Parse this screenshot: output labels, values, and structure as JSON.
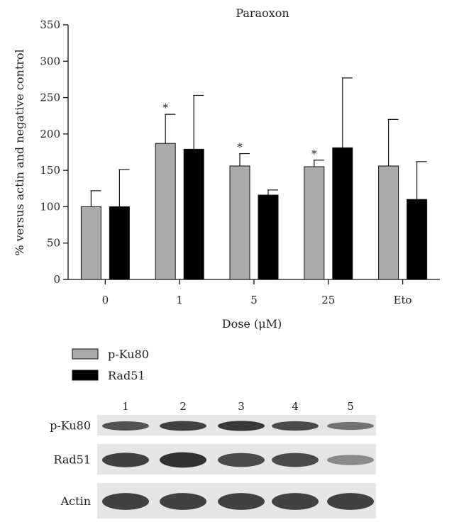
{
  "colors": {
    "pku80": "#aaaaaa",
    "rad51": "#000000",
    "axis": "#111111"
  },
  "chart_data": {
    "type": "bar",
    "title": "Paraoxon",
    "xlabel": "Dose (μM)",
    "ylabel": "% versus actin and negative control",
    "categories": [
      "0",
      "1",
      "5",
      "25",
      "Eto"
    ],
    "ylim": [
      0,
      350
    ],
    "yticks": [
      0,
      50,
      100,
      150,
      200,
      250,
      300,
      350
    ],
    "grid": false,
    "legend_position": "below",
    "series": [
      {
        "name": "p-Ku80",
        "values": [
          100,
          187,
          156,
          155,
          156
        ],
        "errors": [
          22,
          40,
          17,
          9,
          64
        ]
      },
      {
        "name": "Rad51",
        "values": [
          100,
          179,
          116,
          181,
          110
        ],
        "errors": [
          51,
          74,
          7,
          96,
          52
        ]
      }
    ],
    "annotations": [
      {
        "category": "1",
        "series": "p-Ku80",
        "text": "*"
      },
      {
        "category": "5",
        "series": "p-Ku80",
        "text": "*"
      },
      {
        "category": "25",
        "series": "p-Ku80",
        "text": "*"
      }
    ]
  },
  "blot": {
    "lanes": [
      "1",
      "2",
      "3",
      "4",
      "5"
    ],
    "rows": [
      {
        "label": "p-Ku80",
        "intensity": [
          0.75,
          0.85,
          0.9,
          0.8,
          0.55
        ]
      },
      {
        "label": "Rad51",
        "intensity": [
          0.85,
          0.95,
          0.8,
          0.8,
          0.4
        ]
      },
      {
        "label": "Actin",
        "intensity": [
          0.85,
          0.85,
          0.85,
          0.85,
          0.85
        ]
      }
    ]
  }
}
